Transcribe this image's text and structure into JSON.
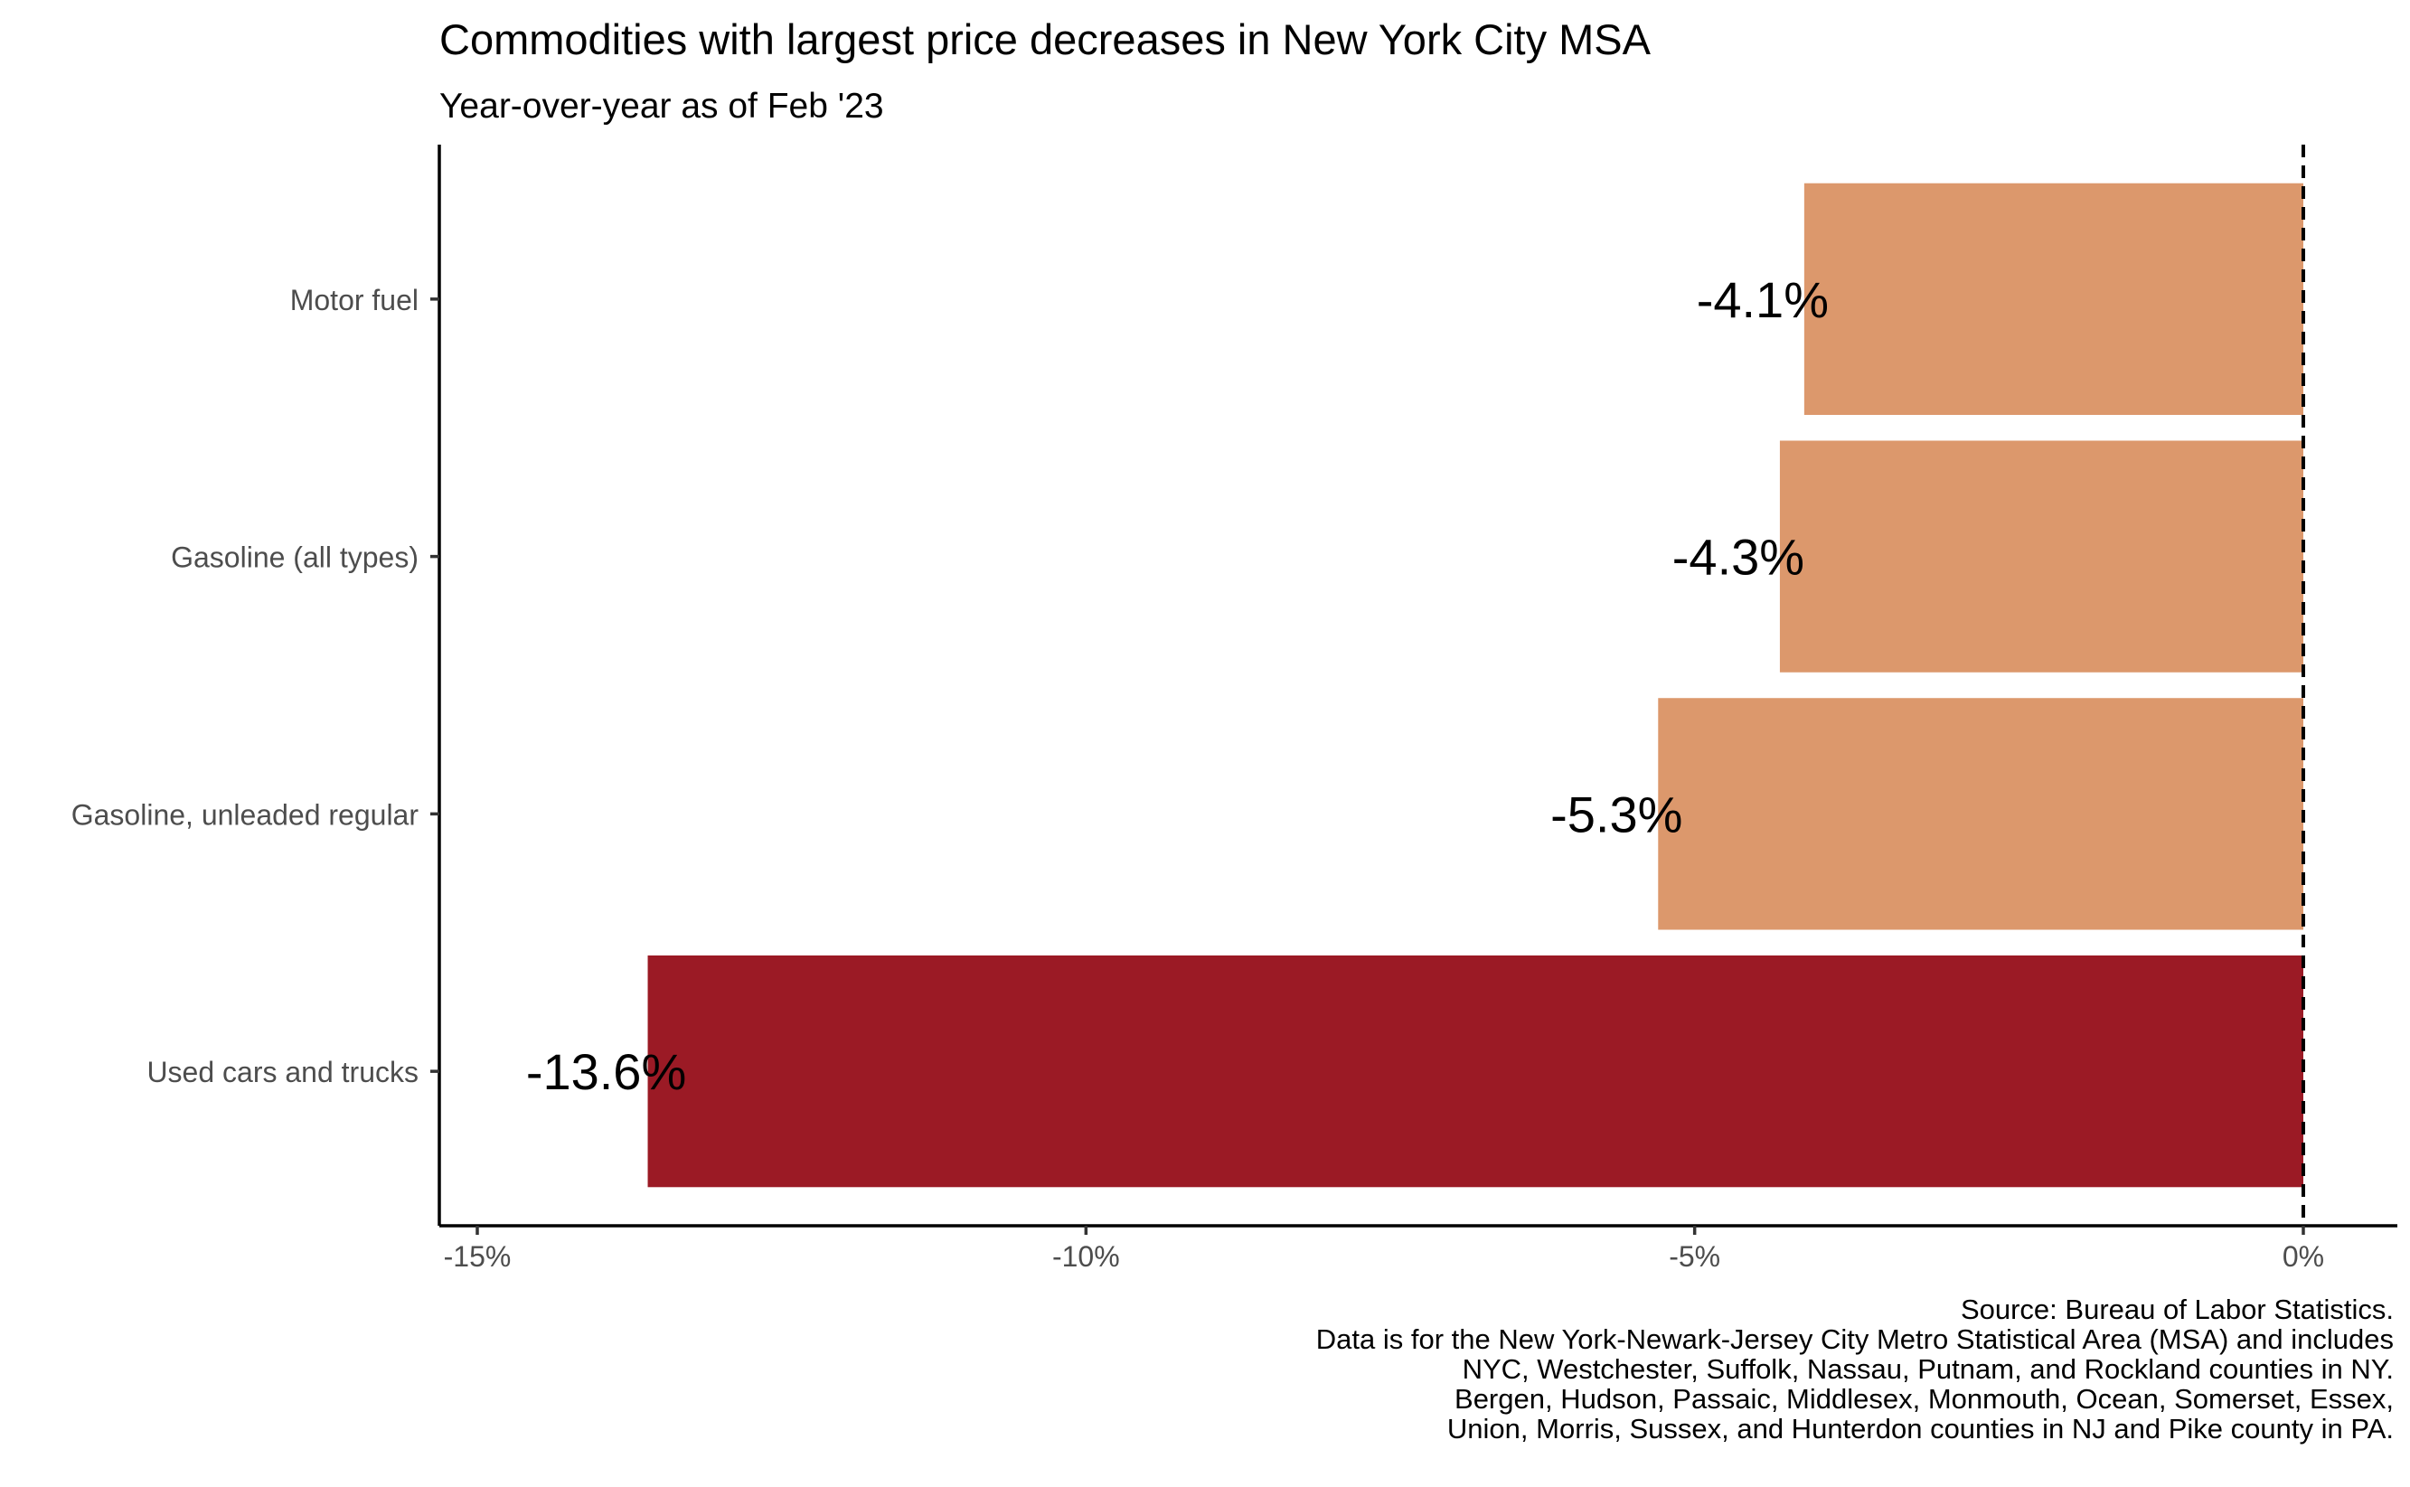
{
  "chart_data": {
    "type": "bar",
    "orientation": "horizontal",
    "title": "Commodities with largest price decreases in New York City MSA",
    "subtitle": "Year-over-year as of Feb '23",
    "xlabel": "",
    "ylabel": "",
    "xlim": [
      -15,
      0
    ],
    "x_ticks": [
      -15,
      -10,
      -5,
      0
    ],
    "x_tick_labels": [
      "-15%",
      "-10%",
      "-5%",
      "0%"
    ],
    "categories": [
      "Motor fuel",
      "Gasoline (all types)",
      "Gasoline, unleaded regular",
      "Used cars and trucks"
    ],
    "values": [
      -4.1,
      -4.3,
      -5.3,
      -13.6
    ],
    "data_labels": [
      "-4.1%",
      "-4.3%",
      "-5.3%",
      "-13.6%"
    ],
    "bar_colors": [
      "#dc986c",
      "#dc986c",
      "#dc986c",
      "#9b1a25"
    ],
    "reference_line": {
      "x": 0,
      "style": "dashed"
    },
    "grid": false,
    "legend": "none",
    "caption": [
      "Source: Bureau of Labor Statistics.",
      "Data is for the New York-Newark-Jersey City Metro Statistical Area (MSA) and includes",
      "NYC, Westchester, Suffolk, Nassau, Putnam, and Rockland counties in NY.",
      "Bergen, Hudson, Passaic, Middlesex, Monmouth, Ocean, Somerset, Essex,",
      "Union, Morris, Sussex, and Hunterdon counties in NJ and Pike county in PA."
    ]
  }
}
